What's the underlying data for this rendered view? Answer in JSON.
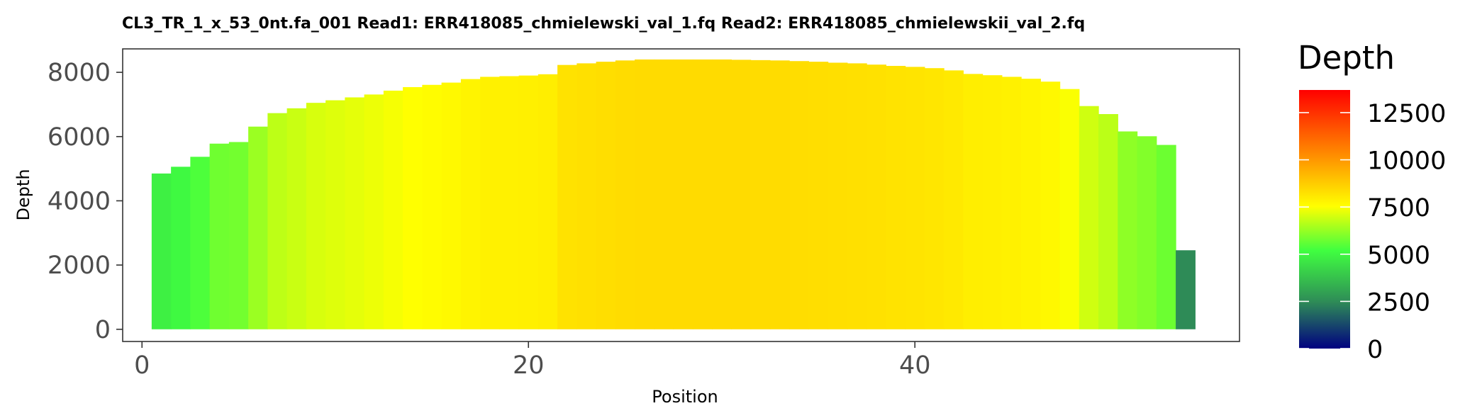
{
  "chart_data": {
    "type": "bar",
    "title": "CL3_TR_1_x_53_0nt.fa_001   Read1: ERR418085_chmielewski_val_1.fq   Read2: ERR418085_chmielewskii_val_2.fq",
    "xlabel": "Position",
    "ylabel": "Depth",
    "xlim": [
      -1,
      56.8
    ],
    "ylim": [
      -380,
      8730
    ],
    "x_ticks": [
      0,
      20,
      40
    ],
    "y_ticks": [
      0,
      2000,
      4000,
      6000,
      8000
    ],
    "grid": false,
    "x": [
      1,
      2,
      3,
      4,
      5,
      6,
      7,
      8,
      9,
      10,
      11,
      12,
      13,
      14,
      15,
      16,
      17,
      18,
      19,
      20,
      21,
      22,
      23,
      24,
      25,
      26,
      27,
      28,
      29,
      30,
      31,
      32,
      33,
      34,
      35,
      36,
      37,
      38,
      39,
      40,
      41,
      42,
      43,
      44,
      45,
      46,
      47,
      48,
      49,
      50,
      51,
      52,
      53,
      54
    ],
    "values": [
      4850,
      5060,
      5370,
      5780,
      5830,
      6310,
      6730,
      6880,
      7050,
      7130,
      7220,
      7310,
      7430,
      7540,
      7610,
      7680,
      7790,
      7860,
      7880,
      7900,
      7940,
      8230,
      8280,
      8330,
      8370,
      8400,
      8400,
      8400,
      8400,
      8400,
      8390,
      8380,
      8370,
      8350,
      8330,
      8300,
      8280,
      8240,
      8200,
      8170,
      8130,
      8060,
      7950,
      7910,
      7860,
      7800,
      7710,
      7480,
      6950,
      6700,
      6160,
      6010,
      5740,
      2460
    ],
    "fill_scale": {
      "name": "Depth",
      "limits": [
        0,
        13700
      ],
      "breaks": [
        0,
        2500,
        5000,
        7500,
        10000,
        12500
      ],
      "colors": [
        "#000080",
        "#2e8b57",
        "#40ff40",
        "#ffff00",
        "#ff8c00",
        "#ff0000"
      ],
      "legend_placement": "right"
    }
  }
}
